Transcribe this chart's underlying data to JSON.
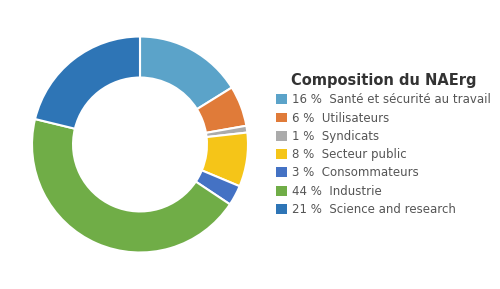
{
  "title": "Composition du NAErg",
  "segments": [
    {
      "label": "Santé et sécurité au travail",
      "pct": 16,
      "color": "#5BA3C9"
    },
    {
      "label": "Utilisateurs",
      "pct": 6,
      "color": "#E07B39"
    },
    {
      "label": "Syndicats",
      "pct": 1,
      "color": "#ABABAB"
    },
    {
      "label": "Secteur public",
      "pct": 8,
      "color": "#F5C518"
    },
    {
      "label": "Consommateurs",
      "pct": 3,
      "color": "#4472C4"
    },
    {
      "label": "Industrie",
      "pct": 44,
      "color": "#70AD47"
    },
    {
      "label": "Science and research",
      "pct": 21,
      "color": "#2E75B6"
    }
  ],
  "bg_color": "#FFFFFF",
  "title_fontsize": 10.5,
  "legend_fontsize": 8.5,
  "donut_width": 0.38
}
